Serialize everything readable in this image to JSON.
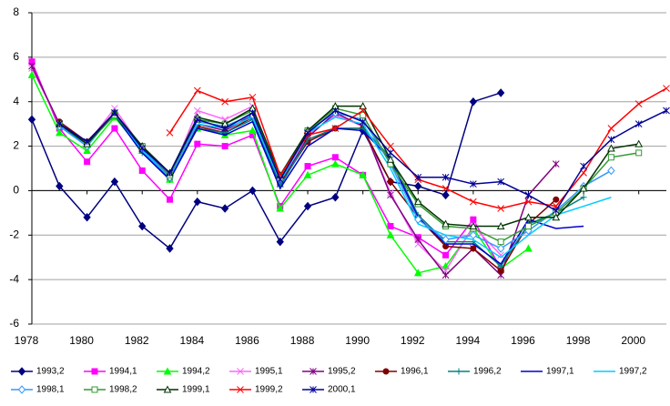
{
  "chart_data": {
    "type": "line",
    "x": [
      1978,
      1979,
      1980,
      1981,
      1982,
      1983,
      1984,
      1985,
      1986,
      1987,
      1988,
      1989,
      1990,
      1991,
      1992,
      1993,
      1994,
      1995,
      1996,
      1997,
      1998,
      1999,
      2000,
      2001
    ],
    "xlim": [
      1978,
      2001
    ],
    "xticks": [
      1978,
      1980,
      1982,
      1984,
      1986,
      1988,
      1990,
      1992,
      1994,
      1996,
      1998,
      2000
    ],
    "ylim": [
      -6,
      8
    ],
    "yticks": [
      -6,
      -4,
      -2,
      0,
      2,
      4,
      6,
      8
    ],
    "grid": true,
    "series": [
      {
        "name": "1993,2",
        "color": "#000080",
        "marker": "diamond",
        "values": [
          3.2,
          0.2,
          -1.2,
          0.4,
          -1.6,
          -2.6,
          -0.5,
          -0.8,
          0.0,
          -2.3,
          -0.7,
          -0.3,
          2.7,
          0.4,
          0.2,
          -0.2,
          4.0,
          4.4,
          null,
          null,
          null,
          null,
          null,
          null
        ]
      },
      {
        "name": "1994,1",
        "color": "#ff00ff",
        "marker": "square",
        "values": [
          5.8,
          2.8,
          1.3,
          2.8,
          0.9,
          -0.4,
          2.1,
          2.0,
          2.5,
          -0.7,
          1.1,
          1.5,
          0.7,
          -1.6,
          -2.1,
          -2.9,
          -1.3,
          -3.5,
          null,
          null,
          null,
          null,
          null,
          null
        ]
      },
      {
        "name": "1994,2",
        "color": "#00ff00",
        "marker": "triangle",
        "values": [
          5.2,
          2.6,
          1.8,
          3.3,
          1.8,
          0.5,
          2.8,
          2.5,
          2.7,
          -0.8,
          0.7,
          1.2,
          0.7,
          -2.0,
          -3.7,
          -3.4,
          -1.7,
          -3.5,
          -2.6,
          null,
          null,
          null,
          null,
          null
        ]
      },
      {
        "name": "1995,1",
        "color": "#ff66ff",
        "marker": "x",
        "values": [
          5.5,
          3.0,
          2.1,
          3.7,
          1.9,
          0.6,
          3.6,
          3.2,
          3.8,
          0.5,
          2.5,
          3.4,
          2.9,
          -0.1,
          -2.4,
          -3.6,
          -1.6,
          -2.9,
          null,
          null,
          null,
          null,
          null,
          null
        ]
      },
      {
        "name": "1995,2",
        "color": "#800080",
        "marker": "star",
        "values": [
          5.6,
          3.0,
          2.2,
          3.5,
          1.9,
          0.7,
          3.0,
          2.7,
          3.4,
          0.3,
          2.4,
          3.5,
          2.9,
          -0.2,
          -2.2,
          -3.8,
          -2.6,
          -3.8,
          -0.2,
          1.2,
          null,
          null,
          null,
          null
        ]
      },
      {
        "name": "1996,1",
        "color": "#800000",
        "marker": "circle",
        "values": [
          null,
          3.1,
          2.2,
          3.5,
          1.8,
          0.6,
          2.9,
          2.6,
          3.3,
          0.3,
          2.2,
          2.8,
          2.8,
          0.4,
          -1.2,
          -2.5,
          -2.6,
          -3.6,
          -1.5,
          -0.4,
          null,
          null,
          null,
          null
        ]
      },
      {
        "name": "1996,2",
        "color": "#008080",
        "marker": "plus",
        "values": [
          null,
          2.9,
          2.1,
          3.4,
          1.7,
          0.5,
          2.8,
          2.6,
          3.2,
          0.2,
          2.3,
          2.8,
          2.8,
          1.5,
          -1.1,
          -2.3,
          -2.3,
          -3.4,
          -1.5,
          -1.0,
          -0.3,
          null,
          null,
          null
        ]
      },
      {
        "name": "1997,1",
        "color": "#0000cc",
        "marker": "none",
        "values": [
          null,
          3.0,
          2.1,
          3.4,
          1.7,
          0.5,
          2.8,
          2.5,
          3.1,
          0.1,
          2.0,
          2.8,
          2.7,
          1.4,
          -1.2,
          -2.4,
          -2.4,
          -3.3,
          -1.3,
          -1.7,
          -1.6,
          null,
          null,
          null
        ]
      },
      {
        "name": "1997,2",
        "color": "#00ccff",
        "marker": "none",
        "values": [
          null,
          2.9,
          2.0,
          3.5,
          1.8,
          0.6,
          3.0,
          2.8,
          3.3,
          0.4,
          2.6,
          3.3,
          3.0,
          1.0,
          -1.5,
          -2.0,
          -2.2,
          -3.0,
          -2.0,
          -1.1,
          -0.7,
          -0.3,
          null,
          null
        ]
      },
      {
        "name": "1998,1",
        "color": "#3399ff",
        "marker": "diamond-open",
        "values": [
          null,
          2.9,
          2.0,
          3.5,
          1.9,
          0.6,
          3.1,
          2.9,
          3.4,
          0.5,
          2.7,
          3.5,
          3.2,
          1.2,
          -1.3,
          -2.2,
          -2.0,
          -2.6,
          -1.8,
          -0.9,
          0.2,
          0.9,
          null,
          null
        ]
      },
      {
        "name": "1998,2",
        "color": "#339933",
        "marker": "square-open",
        "values": [
          null,
          3.0,
          2.1,
          3.4,
          2.0,
          0.7,
          3.2,
          3.0,
          3.6,
          0.6,
          2.7,
          3.7,
          3.4,
          1.2,
          -0.6,
          -1.6,
          -1.7,
          -2.3,
          -1.6,
          -1.0,
          0.1,
          1.5,
          1.7,
          null
        ]
      },
      {
        "name": "1999,1",
        "color": "#003300",
        "marker": "triangle-open",
        "values": [
          null,
          3.0,
          2.1,
          3.5,
          2.0,
          0.8,
          3.3,
          3.0,
          3.7,
          0.7,
          2.7,
          3.8,
          3.8,
          1.4,
          -0.5,
          -1.5,
          -1.6,
          -1.6,
          -1.2,
          -1.2,
          0.1,
          1.9,
          2.1,
          null
        ]
      },
      {
        "name": "1999,2",
        "color": "#ff0000",
        "marker": "x",
        "values": [
          null,
          null,
          null,
          null,
          null,
          2.6,
          4.5,
          4.0,
          4.2,
          0.7,
          2.5,
          2.8,
          3.6,
          2.0,
          0.5,
          0.1,
          -0.5,
          -0.8,
          -0.5,
          -0.7,
          0.8,
          2.8,
          3.9,
          4.6
        ]
      },
      {
        "name": "2000,1",
        "color": "#000099",
        "marker": "star",
        "values": [
          null,
          3.0,
          2.2,
          3.5,
          1.9,
          0.8,
          3.2,
          2.8,
          3.5,
          0.5,
          2.6,
          3.6,
          3.1,
          1.7,
          0.6,
          0.6,
          0.3,
          0.4,
          -0.2,
          -0.9,
          1.1,
          2.3,
          3.0,
          3.6
        ]
      }
    ]
  }
}
